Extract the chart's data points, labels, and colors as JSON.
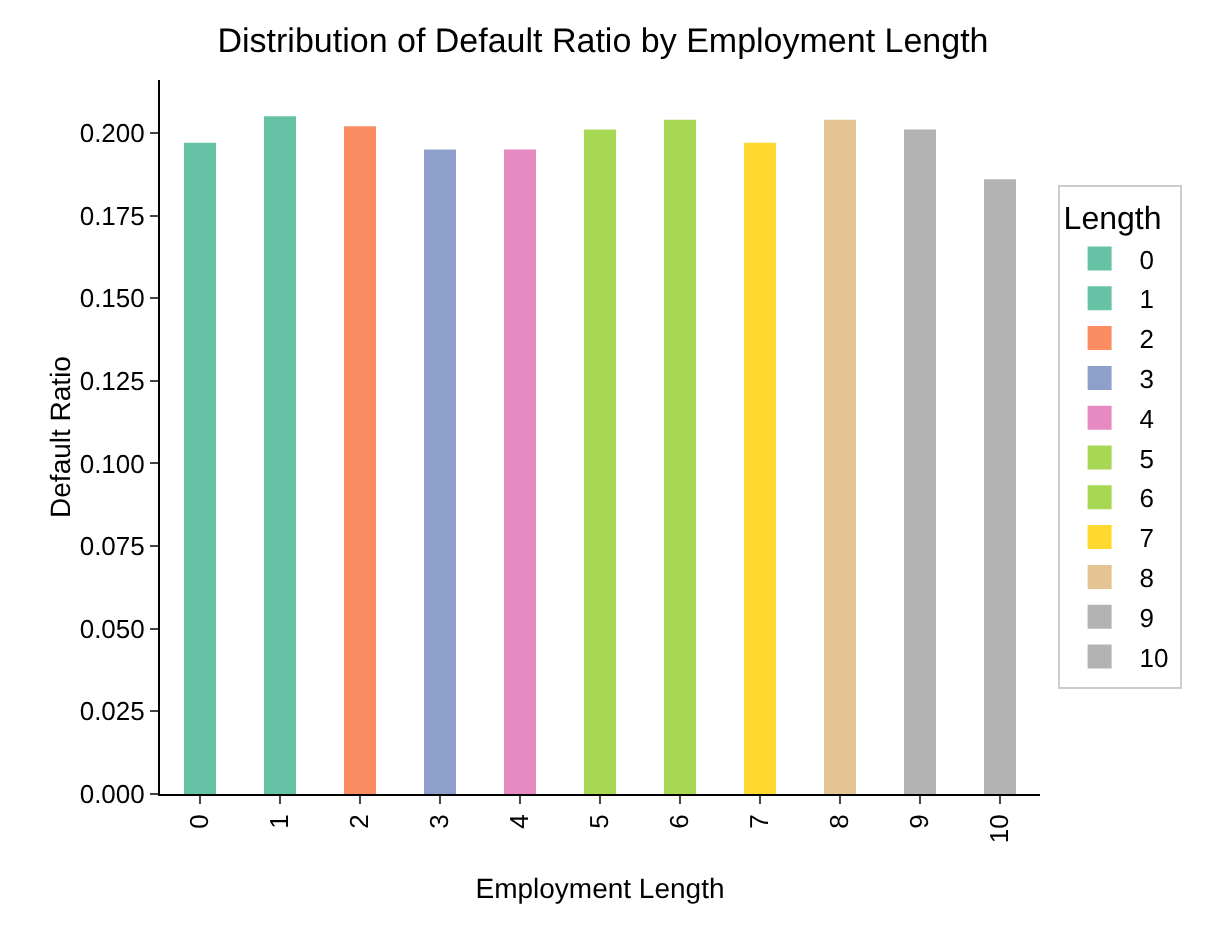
{
  "chart_data": {
    "type": "bar",
    "title": "Distribution of Default Ratio by Employment Length",
    "xlabel": "Employment Length",
    "ylabel": "Default Ratio",
    "legend_title": "Length",
    "categories": [
      "0",
      "1",
      "2",
      "3",
      "4",
      "5",
      "6",
      "7",
      "8",
      "9",
      "10"
    ],
    "series": [
      {
        "name": "0",
        "color": "#66c2a5",
        "values": [
          0.197,
          null,
          null,
          null,
          null,
          null,
          null,
          null,
          null,
          null,
          null
        ]
      },
      {
        "name": "1",
        "color": "#66c2a5",
        "values": [
          null,
          0.205,
          null,
          null,
          null,
          null,
          null,
          null,
          null,
          null,
          null
        ]
      },
      {
        "name": "2",
        "color": "#fc8d62",
        "values": [
          null,
          null,
          0.202,
          null,
          null,
          null,
          null,
          null,
          null,
          null,
          null
        ]
      },
      {
        "name": "3",
        "color": "#8da0cb",
        "values": [
          null,
          null,
          null,
          0.195,
          null,
          null,
          null,
          null,
          null,
          null,
          null
        ]
      },
      {
        "name": "4",
        "color": "#e78ac3",
        "values": [
          null,
          null,
          null,
          null,
          0.195,
          null,
          null,
          null,
          null,
          null,
          null
        ]
      },
      {
        "name": "5",
        "color": "#a6d854",
        "values": [
          null,
          null,
          null,
          null,
          null,
          0.201,
          null,
          null,
          null,
          null,
          null
        ]
      },
      {
        "name": "6",
        "color": "#a6d854",
        "values": [
          null,
          null,
          null,
          null,
          null,
          null,
          0.204,
          null,
          null,
          null,
          null
        ]
      },
      {
        "name": "7",
        "color": "#ffd92f",
        "values": [
          null,
          null,
          null,
          null,
          null,
          null,
          null,
          0.197,
          null,
          null,
          null
        ]
      },
      {
        "name": "8",
        "color": "#e5c494",
        "values": [
          null,
          null,
          null,
          null,
          null,
          null,
          null,
          null,
          0.204,
          null,
          null
        ]
      },
      {
        "name": "9",
        "color": "#b3b3b3",
        "values": [
          null,
          null,
          null,
          null,
          null,
          null,
          null,
          null,
          null,
          0.201,
          null
        ]
      },
      {
        "name": "10",
        "color": "#b3b3b3",
        "values": [
          null,
          null,
          null,
          null,
          null,
          null,
          null,
          null,
          null,
          null,
          0.186
        ]
      }
    ],
    "ylim": [
      0,
      0.216
    ],
    "yticks": [
      {
        "value": 0,
        "label": "0.000"
      },
      {
        "value": 0.025,
        "label": "0.025"
      },
      {
        "value": 0.05,
        "label": "0.050"
      },
      {
        "value": 0.075,
        "label": "0.075"
      },
      {
        "value": 0.1,
        "label": "0.100"
      },
      {
        "value": 0.125,
        "label": "0.125"
      },
      {
        "value": 0.15,
        "label": "0.150"
      },
      {
        "value": 0.175,
        "label": "0.175"
      },
      {
        "value": 0.2,
        "label": "0.200"
      }
    ],
    "grid": false,
    "legend": "right"
  }
}
